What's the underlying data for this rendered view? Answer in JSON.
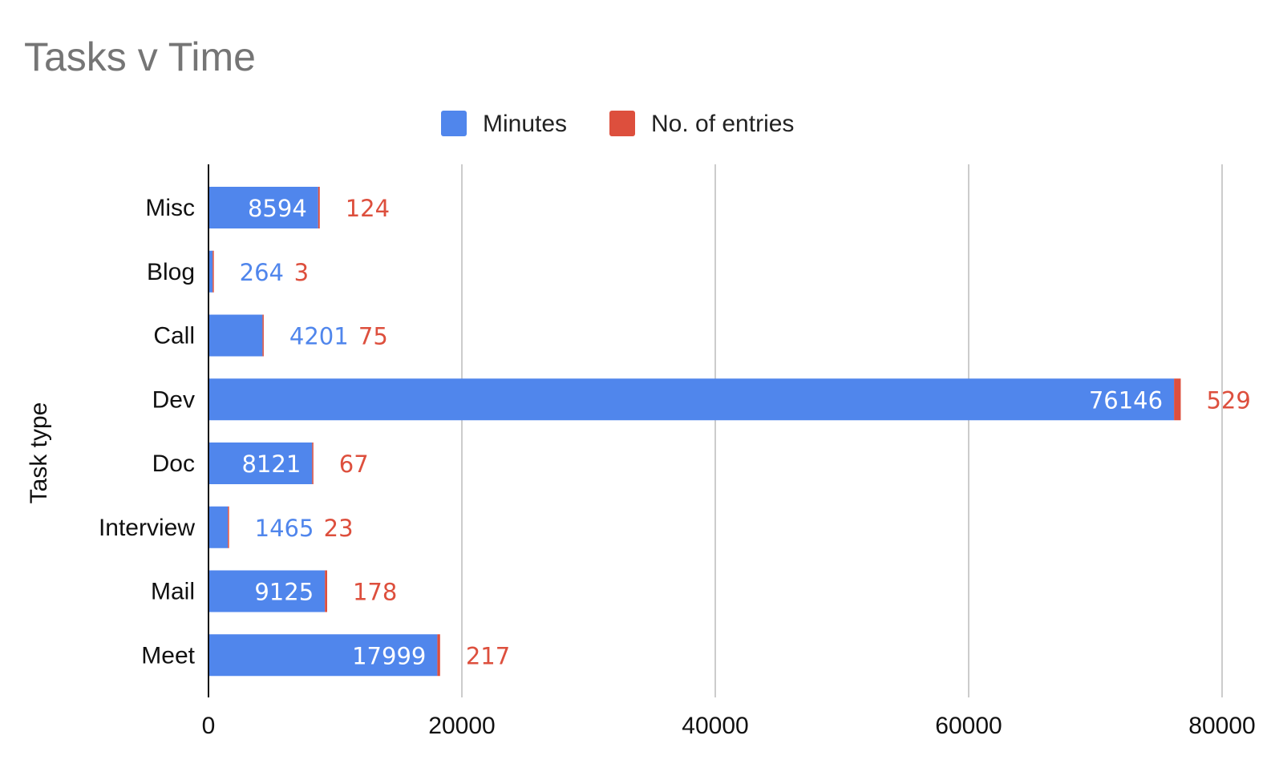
{
  "chart_data": {
    "type": "bar",
    "orientation": "horizontal",
    "stacked": true,
    "title": "Tasks v Time",
    "ylabel": "Task type",
    "xlabel": "",
    "categories": [
      "Misc",
      "Blog",
      "Call",
      "Dev",
      "Doc",
      "Interview",
      "Mail",
      "Meet"
    ],
    "series": [
      {
        "name": "Minutes",
        "color": "#5086EC",
        "values": [
          8594,
          264,
          4201,
          76146,
          8121,
          1465,
          9125,
          17999
        ]
      },
      {
        "name": "No. of entries",
        "color": "#DD4F3D",
        "values": [
          124,
          3,
          75,
          529,
          67,
          23,
          178,
          217
        ]
      }
    ],
    "xlim": [
      0,
      80000
    ],
    "xticks": [
      "0",
      "20000",
      "40000",
      "60000",
      "80000"
    ],
    "grid": true,
    "legend_position": "top"
  }
}
